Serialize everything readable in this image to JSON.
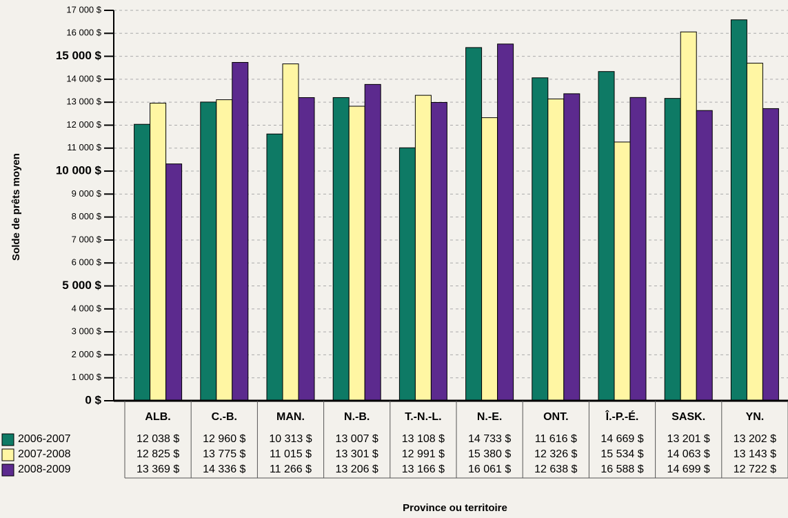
{
  "chart_data": {
    "type": "bar",
    "x_label": "Province ou territoire",
    "y_label": "Solde de prêts moyen",
    "categories": [
      "ALB.",
      "C.-B.",
      "MAN.",
      "N.-B.",
      "T.-N.-L.",
      "N.-E.",
      "ONT.",
      "Î.-P.-É.",
      "SASK.",
      "YN."
    ],
    "series": [
      {
        "name": "2006-2007",
        "color": "#0e7a65",
        "values": [
          12038,
          12960,
          10313,
          13007,
          13108,
          14733,
          11616,
          14669,
          13201,
          13202
        ],
        "value_labels": [
          "12 038 $",
          "12 960 $",
          "10 313 $",
          "13 007 $",
          "13 108 $",
          "14 733 $",
          "11 616 $",
          "14 669 $",
          "13 201 $",
          "13 202 $"
        ]
      },
      {
        "name": "2007-2008",
        "color": "#fff6a3",
        "values": [
          12825,
          13775,
          11015,
          13301,
          12991,
          15380,
          12326,
          15534,
          14063,
          13143
        ],
        "value_labels": [
          "12 825 $",
          "13 775 $",
          "11 015 $",
          "13 301 $",
          "12 991 $",
          "15 380 $",
          "12 326 $",
          "15 534 $",
          "14 063 $",
          "13 143 $"
        ]
      },
      {
        "name": "2008-2009",
        "color": "#5c2a8e",
        "values": [
          13369,
          14336,
          11266,
          13206,
          13166,
          16061,
          12638,
          16588,
          14699,
          12722
        ],
        "value_labels": [
          "13 369 $",
          "14 336 $",
          "11 266 $",
          "13 206 $",
          "13 166 $",
          "16 061 $",
          "12 638 $",
          "16 588 $",
          "14 699 $",
          "12 722 $"
        ]
      }
    ],
    "ylim": [
      0,
      17000
    ],
    "yticks": [
      {
        "value": 0,
        "label": "0 $"
      },
      {
        "value": 1000,
        "label": "1 000 $"
      },
      {
        "value": 2000,
        "label": "2 000 $"
      },
      {
        "value": 3000,
        "label": "3 000 $"
      },
      {
        "value": 4000,
        "label": "4 000 $"
      },
      {
        "value": 5000,
        "label": "5 000 $"
      },
      {
        "value": 6000,
        "label": "6 000 $"
      },
      {
        "value": 7000,
        "label": "7 000 $"
      },
      {
        "value": 8000,
        "label": "8 000 $"
      },
      {
        "value": 9000,
        "label": "9 000 $"
      },
      {
        "value": 10000,
        "label": "10 000 $"
      },
      {
        "value": 11000,
        "label": "11 000 $"
      },
      {
        "value": 12000,
        "label": "12 000 $"
      },
      {
        "value": 13000,
        "label": "13 000 $"
      },
      {
        "value": 14000,
        "label": "14 000 $"
      },
      {
        "value": 15000,
        "label": "15 000 $"
      },
      {
        "value": 16000,
        "label": "16 000 $"
      },
      {
        "value": 17000,
        "label": "17 000 $"
      }
    ],
    "grid": true
  }
}
